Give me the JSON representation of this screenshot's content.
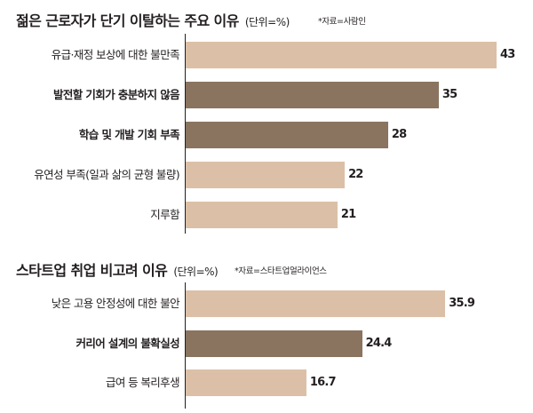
{
  "colors": {
    "light_bar": "#dbc0a7",
    "dark_bar": "#8a7460",
    "axis": "#231f20",
    "text": "#231f20"
  },
  "chart_data": [
    {
      "type": "bar",
      "orientation": "horizontal",
      "title": "젊은 근로자가 단기 이탈하는 주요 이유",
      "unit": "(단위=%)",
      "source": "*자료=사람인",
      "categories": [
        "유급·재정 보상에 대한 불만족",
        "발전할 기회가 충분하지 않음",
        "학습 및 개발 기회 부족",
        "유연성 부족(일과 삶의 균형 불량)",
        "지루함"
      ],
      "values": [
        43,
        35,
        28,
        22,
        21
      ],
      "value_labels": [
        "43",
        "35",
        "28",
        "22",
        "21"
      ],
      "highlighted": [
        false,
        true,
        true,
        false,
        false
      ],
      "xlim": [
        0,
        45
      ],
      "grid": false
    },
    {
      "type": "bar",
      "orientation": "horizontal",
      "title": "스타트업 취업 비고려 이유",
      "unit": "(단위=%)",
      "source": "*자료=스타트업얼라이언스",
      "categories": [
        "낮은 고용 안정성에 대한 불안",
        "커리어 설계의 불확실성",
        "급여 등 복리후생"
      ],
      "values": [
        35.9,
        24.4,
        16.7
      ],
      "value_labels": [
        "35.9",
        "24.4",
        "16.7"
      ],
      "highlighted": [
        false,
        true,
        false
      ],
      "xlim": [
        0,
        45
      ],
      "grid": false
    }
  ]
}
